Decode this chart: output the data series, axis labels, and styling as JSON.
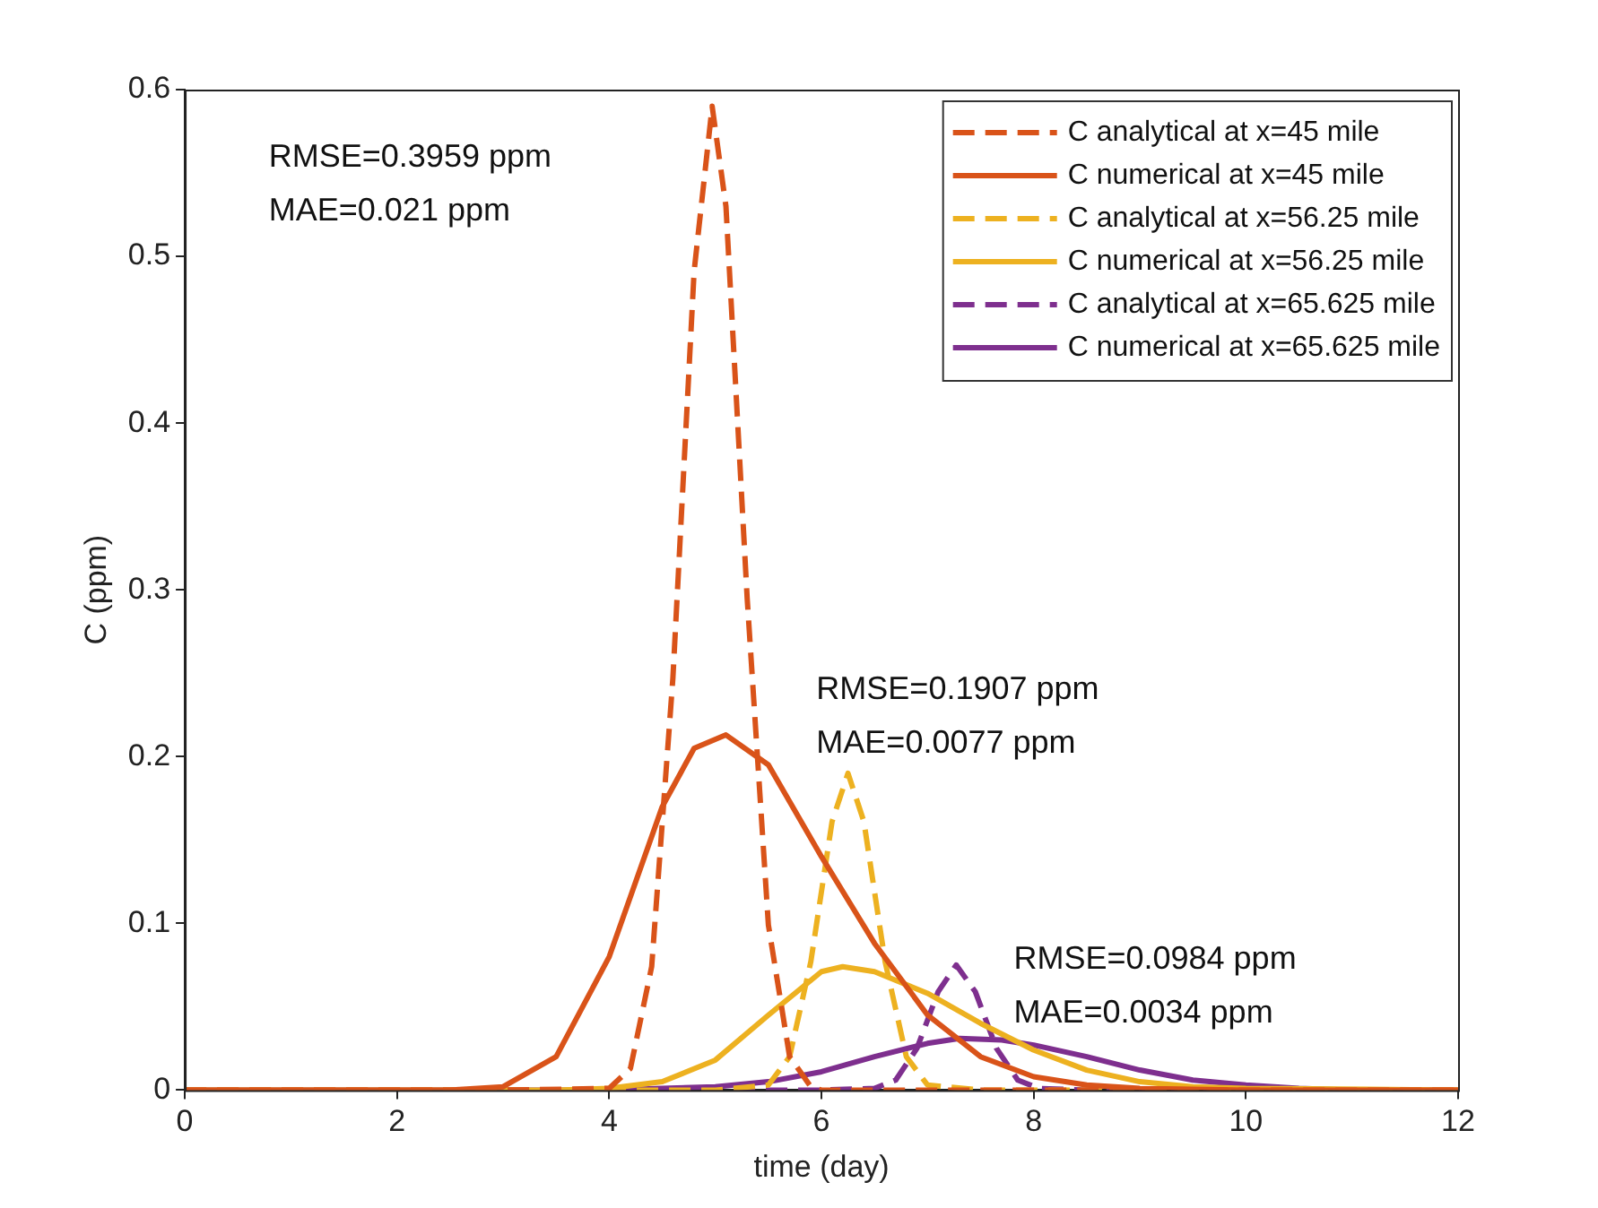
{
  "chart_data": {
    "type": "line",
    "xlabel": "time (day)",
    "ylabel": "C (ppm)",
    "xlim": [
      0,
      12
    ],
    "xticks": [
      0,
      2,
      4,
      6,
      8,
      10,
      12
    ],
    "ylim": [
      0,
      0.6
    ],
    "yticks": [
      0,
      0.1,
      0.2,
      0.3,
      0.4,
      0.5,
      0.6
    ],
    "grid": false,
    "legend": "top right",
    "marker": "none",
    "series": [
      {
        "name": "C analytical at x=45 mile",
        "color": "#d95319",
        "line_style": "dashed",
        "x": [
          0,
          3,
          4,
          4.2,
          4.4,
          4.6,
          4.8,
          4.97,
          5.1,
          5.3,
          5.5,
          5.7,
          5.9,
          6,
          12
        ],
        "values": [
          0,
          0,
          0.001,
          0.013,
          0.074,
          0.247,
          0.491,
          0.59,
          0.53,
          0.295,
          0.099,
          0.02,
          0.002,
          0,
          0
        ]
      },
      {
        "name": "C numerical at x=45 mile",
        "color": "#d95319",
        "line_style": "solid",
        "x": [
          0,
          2.5,
          3,
          3.5,
          4,
          4.5,
          4.8,
          5.1,
          5.5,
          6,
          6.5,
          7,
          7.5,
          8,
          8.5,
          9,
          10,
          12
        ],
        "values": [
          0,
          0,
          0.002,
          0.02,
          0.08,
          0.17,
          0.205,
          0.213,
          0.195,
          0.14,
          0.088,
          0.045,
          0.02,
          0.008,
          0.003,
          0.001,
          0,
          0
        ]
      },
      {
        "name": "C analytical at x=56.25 mile",
        "color": "#edb120",
        "line_style": "dashed",
        "x": [
          0,
          5,
          5.5,
          5.7,
          5.9,
          6.1,
          6.25,
          6.4,
          6.6,
          6.8,
          7,
          7.5,
          12
        ],
        "values": [
          0,
          0,
          0.003,
          0.02,
          0.077,
          0.161,
          0.19,
          0.161,
          0.077,
          0.02,
          0.003,
          0,
          0
        ]
      },
      {
        "name": "C numerical at x=56.25 mile",
        "color": "#edb120",
        "line_style": "solid",
        "x": [
          0,
          3.5,
          4,
          4.5,
          5,
          5.5,
          6,
          6.2,
          6.5,
          7,
          7.5,
          8,
          8.5,
          9,
          9.5,
          10,
          12
        ],
        "values": [
          0,
          0,
          0.001,
          0.005,
          0.018,
          0.045,
          0.071,
          0.074,
          0.071,
          0.058,
          0.04,
          0.024,
          0.012,
          0.005,
          0.002,
          0.001,
          0
        ]
      },
      {
        "name": "C analytical at x=65.625 mile",
        "color": "#7e2f8e",
        "line_style": "dashed",
        "x": [
          0,
          6,
          6.5,
          6.7,
          6.9,
          7.1,
          7.27,
          7.45,
          7.65,
          7.85,
          8.05,
          8.5,
          12
        ],
        "values": [
          0,
          0,
          0.001,
          0.006,
          0.025,
          0.059,
          0.075,
          0.059,
          0.025,
          0.006,
          0.001,
          0,
          0
        ]
      },
      {
        "name": "C numerical at x=65.625 mile",
        "color": "#7e2f8e",
        "line_style": "solid",
        "x": [
          0,
          4,
          4.5,
          5,
          5.5,
          6,
          6.5,
          7,
          7.3,
          7.7,
          8,
          8.5,
          9,
          9.5,
          10,
          10.5,
          11,
          12
        ],
        "values": [
          0,
          0,
          0.001,
          0.002,
          0.005,
          0.011,
          0.02,
          0.028,
          0.031,
          0.03,
          0.027,
          0.02,
          0.012,
          0.006,
          0.003,
          0.001,
          0,
          0
        ]
      }
    ],
    "annotations": [
      "RMSE=0.3959 ppm",
      "MAE=0.021 ppm",
      "RMSE=0.1907 ppm",
      "MAE=0.0077 ppm",
      "RMSE=0.0984 ppm",
      "MAE=0.0034 ppm"
    ]
  }
}
